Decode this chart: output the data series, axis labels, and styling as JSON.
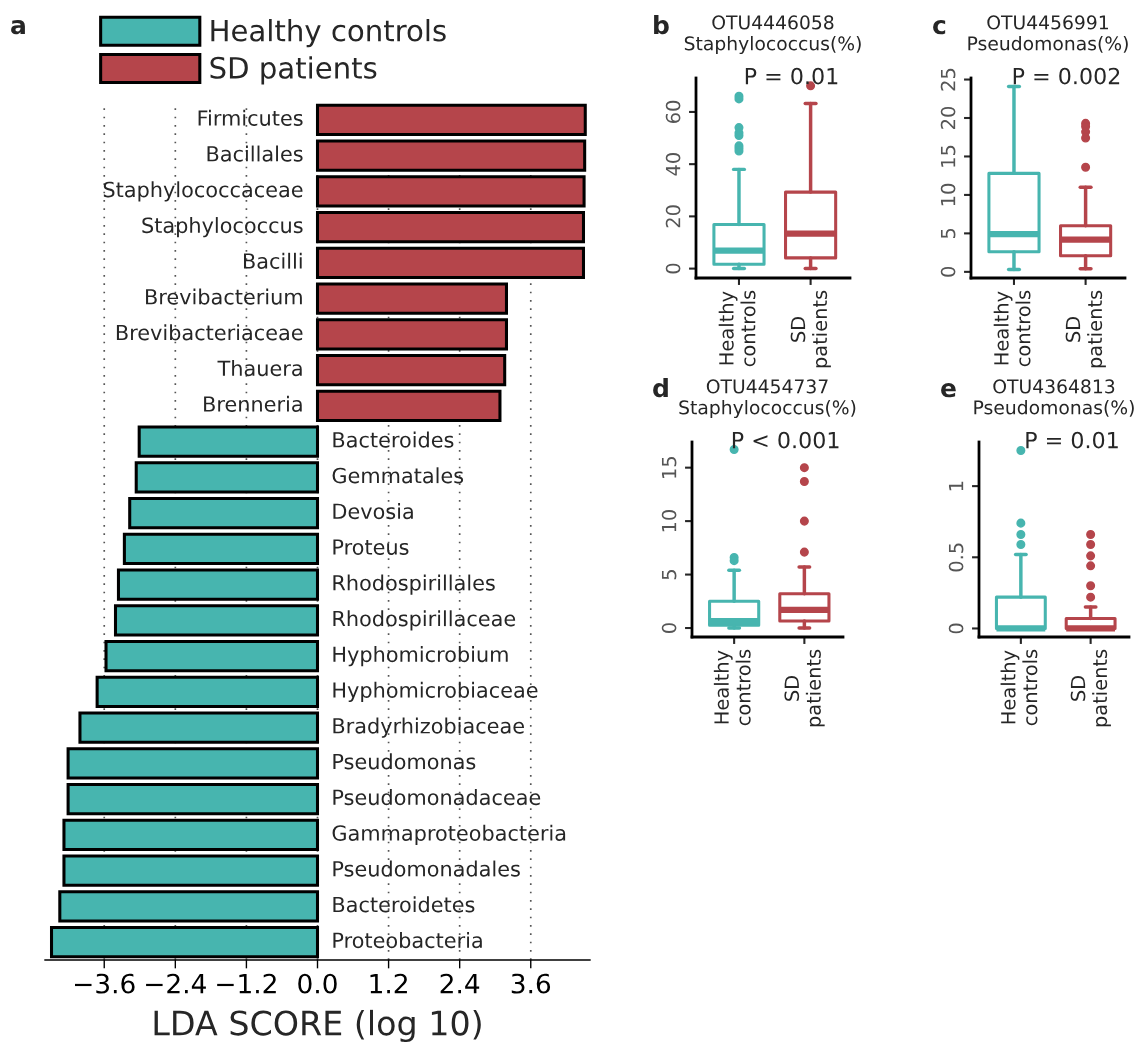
{
  "chart_data": [
    {
      "type": "bar",
      "orientation": "horizontal",
      "xlabel": "LDA SCORE (log 10)",
      "categories": [
        "Firmicutes",
        "Bacillales",
        "Staphylococcaceae",
        "Staphylococcus",
        "Bacilli",
        "Brevibacterium",
        "Brevibacteriaceae",
        "Thauera",
        "Brenneria",
        "Bacteroides",
        "Gemmatales",
        "Devosia",
        "Proteus",
        "Rhodospirillales",
        "Rhodospirillaceae",
        "Hyphomicrobium",
        "Hyphomicrobiaceae",
        "Bradyrhizobiaceae",
        "Pseudomonas",
        "Pseudomonadaceae",
        "Gammaproteobacteria",
        "Pseudomonadales",
        "Bacteroidetes",
        "Proteobacteria"
      ],
      "series": [
        {
          "name": "Healthy controls",
          "color": "#47b5af",
          "values": [
            null,
            null,
            null,
            null,
            null,
            null,
            null,
            null,
            null,
            -3.01,
            -3.06,
            -3.17,
            -3.26,
            -3.36,
            -3.41,
            -3.57,
            -3.72,
            -4.01,
            -4.21,
            -4.21,
            -4.28,
            -4.28,
            -4.35,
            -4.49
          ]
        },
        {
          "name": "SD patients",
          "color": "#b5454b",
          "values": [
            4.52,
            4.51,
            4.5,
            4.49,
            4.49,
            3.19,
            3.19,
            3.16,
            3.08,
            null,
            null,
            null,
            null,
            null,
            null,
            null,
            null,
            null,
            null,
            null,
            null,
            null,
            null,
            null
          ]
        }
      ],
      "xlim": [
        -4.6,
        4.6
      ],
      "xticks": [
        {
          "value": -3.6,
          "label": "−3.6"
        },
        {
          "value": -2.4,
          "label": "−2.4"
        },
        {
          "value": -1.2,
          "label": "−1.2"
        },
        {
          "value": 0,
          "label": "0.0"
        },
        1.2,
        2.4,
        3.6
      ],
      "grid": "x",
      "legend": "top",
      "annotations": [
        "a"
      ]
    },
    {
      "type": "box",
      "title": "OTU4446058\nStaphylococcus(%)",
      "categories": [
        "Healthy\ncontrols",
        "SD\npatients"
      ],
      "colors": [
        "#47b5af",
        "#b5454b"
      ],
      "boxes": [
        {
          "low": 0,
          "q1": 1.7,
          "median": 6.9,
          "q3": 16.9,
          "high": 38,
          "outliers": [
            66,
            65,
            54,
            52,
            51,
            47,
            46,
            45
          ]
        },
        {
          "low": 0,
          "q1": 4.1,
          "median": 13.4,
          "q3": 29.3,
          "high": 63.2,
          "outliers": [
            70
          ]
        }
      ],
      "ylim": [
        -3.6,
        73
      ],
      "yticks": [
        0,
        20,
        40,
        60
      ],
      "annotations": [
        "b",
        "P = 0.01"
      ]
    },
    {
      "type": "box",
      "title": "OTU4456991\nPseudomonas(%)",
      "categories": [
        "Healthy\ncontrols",
        "SD\npatients"
      ],
      "colors": [
        "#47b5af",
        "#b5454b"
      ],
      "boxes": [
        {
          "low": 0.3,
          "q1": 2.6,
          "median": 4.9,
          "q3": 12.8,
          "high": 24.1
        },
        {
          "low": 0.4,
          "q1": 2.1,
          "median": 4.2,
          "q3": 6.0,
          "high": 11.0,
          "outliers": [
            19.3,
            18.9,
            18.2,
            17.4,
            13.6
          ]
        }
      ],
      "ylim": [
        -0.8,
        25.2
      ],
      "yticks": [
        0,
        5,
        10,
        15,
        20,
        25
      ],
      "annotations": [
        "c",
        "P = 0.002"
      ]
    },
    {
      "type": "box",
      "title": "OTU4454737\nStaphylococcus(%)",
      "categories": [
        "Healthy\ncontrols",
        "SD\npatients"
      ],
      "colors": [
        "#47b5af",
        "#b5454b"
      ],
      "boxes": [
        {
          "low": 0,
          "q1": 0.25,
          "median": 0.65,
          "q3": 2.5,
          "high": 5.4,
          "outliers": [
            6.6,
            6.3,
            16.7
          ]
        },
        {
          "low": 0,
          "q1": 0.65,
          "median": 1.7,
          "q3": 3.2,
          "high": 5.7,
          "outliers": [
            7.1,
            10.0,
            13.7,
            15.0
          ]
        }
      ],
      "ylim": [
        -0.84,
        17.4
      ],
      "yticks": [
        0,
        5,
        10,
        15
      ],
      "annotations": [
        "d",
        "P < 0.001"
      ]
    },
    {
      "type": "box",
      "title": "OTU4364813\nPseudomonas(%)",
      "categories": [
        "Healthy\ncontrols",
        "SD\npatients"
      ],
      "colors": [
        "#47b5af",
        "#b5454b"
      ],
      "boxes": [
        {
          "low": 0,
          "q1": 0,
          "median": 0,
          "q3": 0.22,
          "high": 0.52,
          "outliers": [
            0.74,
            0.66,
            0.59,
            1.25
          ]
        },
        {
          "low": 0,
          "q1": 0,
          "median": 0,
          "q3": 0.07,
          "high": 0.15,
          "outliers": [
            0.22,
            0.3,
            0.44,
            0.51,
            0.59,
            0.66
          ]
        }
      ],
      "ylim": [
        -0.06,
        1.31
      ],
      "yticks": [
        0,
        0.5,
        1
      ],
      "annotations": [
        "e",
        "P = 0.01"
      ]
    }
  ]
}
